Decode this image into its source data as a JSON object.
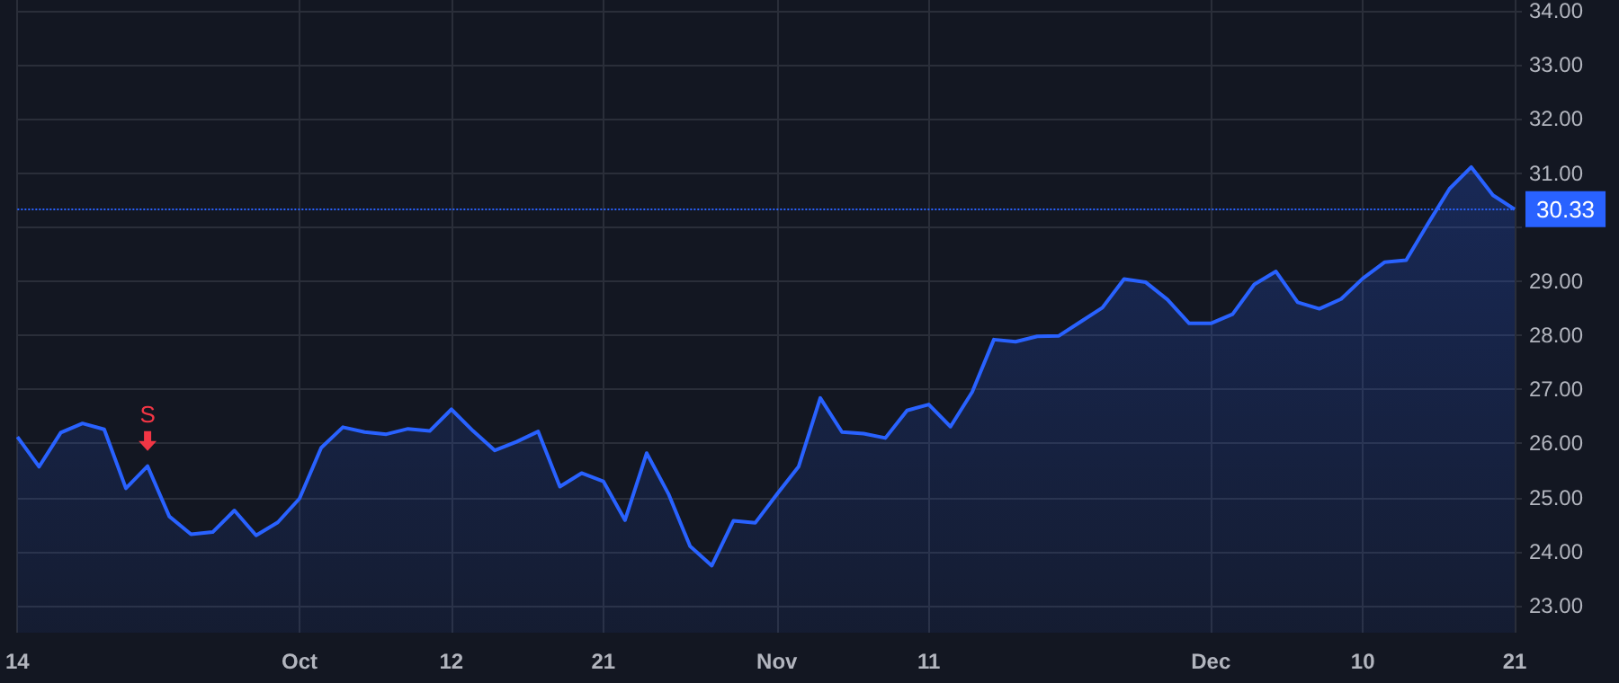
{
  "chart_data": {
    "type": "area",
    "categories": [
      "14",
      null,
      null,
      null,
      null,
      null,
      null,
      null,
      null,
      null,
      null,
      null,
      null,
      "Oct",
      null,
      null,
      null,
      null,
      null,
      null,
      "12",
      null,
      null,
      null,
      null,
      null,
      null,
      "21",
      null,
      null,
      null,
      null,
      null,
      null,
      null,
      "Nov",
      null,
      null,
      null,
      null,
      null,
      null,
      "11",
      null,
      null,
      null,
      null,
      null,
      null,
      null,
      null,
      null,
      null,
      null,
      null,
      "Dec",
      null,
      null,
      null,
      null,
      null,
      null,
      "10",
      null,
      null,
      null,
      null,
      null,
      null,
      "21"
    ],
    "series": [
      {
        "color": "#2962ff",
        "values": [
          26.12,
          25.57,
          26.2,
          26.37,
          26.26,
          25.17,
          25.58,
          24.65,
          24.32,
          24.36,
          24.76,
          24.3,
          24.54,
          24.98,
          25.92,
          26.3,
          26.21,
          26.17,
          26.27,
          26.23,
          26.63,
          26.23,
          25.87,
          26.03,
          26.22,
          25.2,
          25.45,
          25.3,
          24.58,
          25.82,
          25.07,
          24.1,
          23.74,
          24.57,
          24.53,
          25.06,
          25.57,
          26.84,
          26.21,
          26.18,
          26.1,
          26.61,
          26.72,
          26.31,
          26.95,
          27.92,
          27.88,
          27.98,
          27.99,
          28.25,
          28.51,
          29.04,
          28.98,
          28.66,
          28.22,
          28.22,
          28.39,
          28.94,
          29.18,
          28.61,
          28.49,
          28.67,
          29.05,
          29.35,
          29.39,
          30.06,
          30.71,
          31.11,
          30.59,
          30.33
        ]
      }
    ],
    "ylim": [
      22.5,
      34.2
    ],
    "yticks": [
      {
        "value": 23,
        "label": "23.00"
      },
      {
        "value": 24,
        "label": "24.00"
      },
      {
        "value": 25,
        "label": "25.00"
      },
      {
        "value": 26,
        "label": "26.00"
      },
      {
        "value": 27,
        "label": "27.00"
      },
      {
        "value": 28,
        "label": "28.00"
      },
      {
        "value": 29,
        "label": "29.00"
      },
      {
        "value": 30,
        "label": null
      },
      {
        "value": 31,
        "label": "31.00"
      },
      {
        "value": 32,
        "label": "32.00"
      },
      {
        "value": 33,
        "label": "33.00"
      },
      {
        "value": 34,
        "label": "34.00"
      }
    ],
    "ref_lines": [
      {
        "axis": "y",
        "value": 30.33,
        "label": "30.33",
        "color": "#2962ff",
        "line_style": "dotted"
      }
    ],
    "annotations": [
      {
        "text": "S",
        "y": 25.58
      }
    ],
    "grid": true,
    "marker": "none"
  }
}
